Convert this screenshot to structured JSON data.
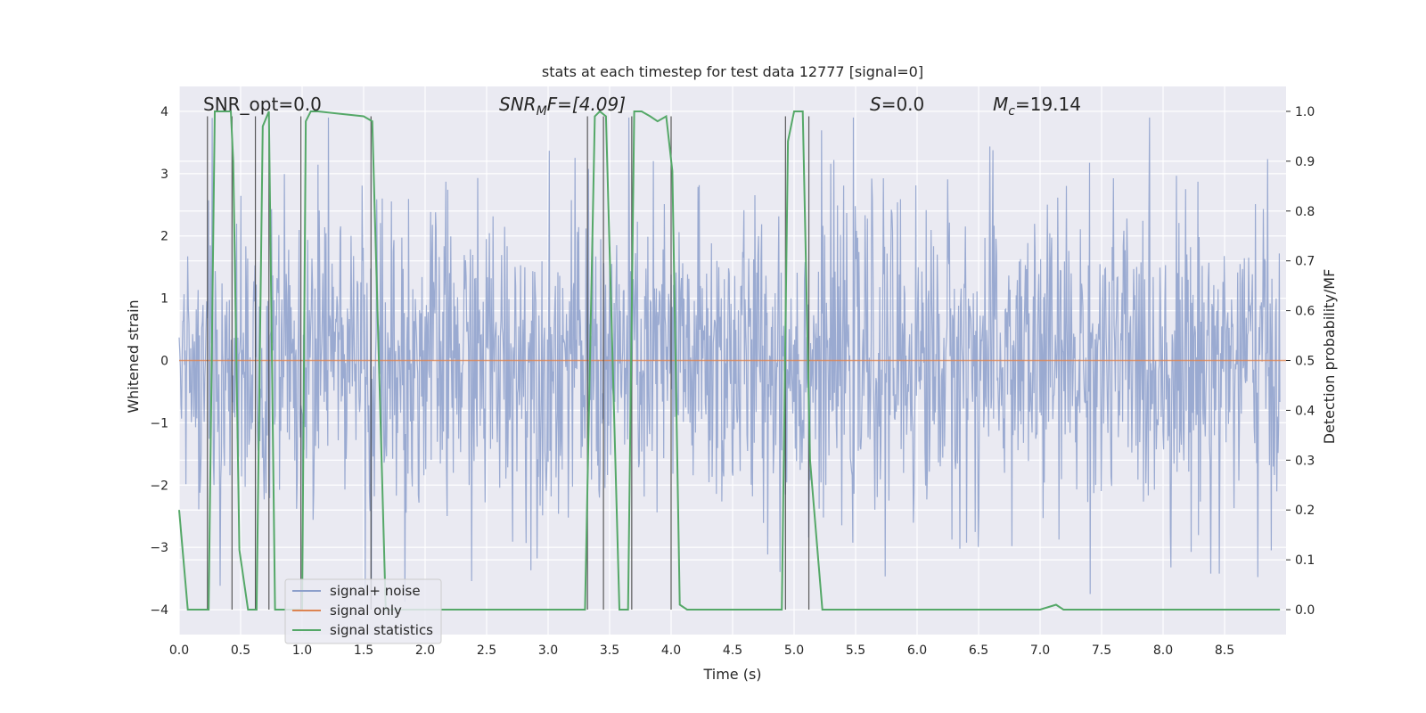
{
  "chart_data": {
    "type": "line",
    "title": "stats at each timestep for test data 12777 [signal=0]",
    "xlabel": "Time (s)",
    "ylabel": "Whitened strain",
    "y2label": "Detection probability/MF",
    "xlim": [
      0.0,
      9.0
    ],
    "ylim": [
      -4.4,
      4.4
    ],
    "y2lim": [
      -0.05,
      1.05
    ],
    "x_ticks": [
      "0.0",
      "0.5",
      "1.0",
      "1.5",
      "2.0",
      "2.5",
      "3.0",
      "3.5",
      "4.0",
      "4.5",
      "5.0",
      "5.5",
      "6.0",
      "6.5",
      "7.0",
      "7.5",
      "8.0",
      "8.5"
    ],
    "y_ticks": [
      "4",
      "3",
      "2",
      "1",
      "0",
      "−1",
      "−2",
      "−3",
      "−4"
    ],
    "y2_ticks": [
      "1.0",
      "0.9",
      "0.8",
      "0.7",
      "0.6",
      "0.5",
      "0.4",
      "0.3",
      "0.2",
      "0.1",
      "0.0"
    ],
    "grid": true,
    "legend_position": "bottom-left",
    "annotations": {
      "snr_opt": "SNR_opt=0.0",
      "snr_mf_prefix": "SNR",
      "snr_mf_sub": "M",
      "snr_mf_suffix": "F=[4.09]",
      "s_var": "S",
      "s_value": "=0.0",
      "mc_var": "M",
      "mc_sub": "c",
      "mc_value": "=19.14"
    },
    "series": [
      {
        "name": "signal+ noise",
        "color": "#8c9fcb",
        "description": "whitened noisy strain, roughly within ±2.5 with spikes to ±3.7",
        "noise_envelope": {
          "typical_abs": 2.0,
          "max_abs": 3.9,
          "samples": 1800,
          "seed": 12777
        }
      },
      {
        "name": "signal only",
        "color": "#dd8452",
        "x": [
          0.0,
          9.0
        ],
        "y": [
          0.0,
          0.0
        ]
      },
      {
        "name": "signal statistics",
        "color": "#55a868",
        "x": [
          0.0,
          0.07,
          0.12,
          0.24,
          0.29,
          0.42,
          0.44,
          0.49,
          0.56,
          0.63,
          0.68,
          0.73,
          0.78,
          0.81,
          1.0,
          1.03,
          1.07,
          1.13,
          1.5,
          1.57,
          1.68,
          2.5,
          3.3,
          3.38,
          3.42,
          3.47,
          3.58,
          3.65,
          3.7,
          3.76,
          3.83,
          3.89,
          3.96,
          4.01,
          4.07,
          4.13,
          4.22,
          4.9,
          4.95,
          5.0,
          5.07,
          5.13,
          5.23,
          5.5,
          7.0,
          7.13,
          7.19,
          8.95
        ],
        "y": [
          0.2,
          0.0,
          0.0,
          0.0,
          1.0,
          1.0,
          0.9,
          0.12,
          0.0,
          0.0,
          0.97,
          1.0,
          0.0,
          0.0,
          0.0,
          0.98,
          1.0,
          1.0,
          0.99,
          0.98,
          0.0,
          0.0,
          0.0,
          0.99,
          1.0,
          0.99,
          0.0,
          0.0,
          1.0,
          1.0,
          0.99,
          0.98,
          0.99,
          0.88,
          0.01,
          0.0,
          0.0,
          0.0,
          0.94,
          1.0,
          1.0,
          0.3,
          0.0,
          0.0,
          0.0,
          0.01,
          0.0,
          0.0
        ]
      }
    ],
    "event_markers_x": [
      0.23,
      0.43,
      0.62,
      0.73,
      0.99,
      1.56,
      3.32,
      3.45,
      3.68,
      4.0,
      4.93,
      5.12
    ]
  }
}
